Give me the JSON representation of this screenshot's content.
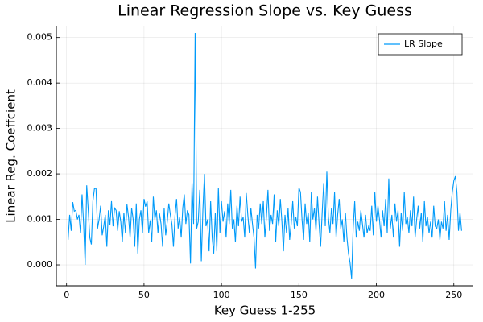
{
  "chart_data": {
    "type": "line",
    "title": "Linear Regression Slope vs. Key Guess",
    "xlabel": "Key Guess 1-255",
    "ylabel": "Linear Reg. Coeffcient",
    "x": [
      1,
      2,
      3,
      4,
      5,
      6,
      7,
      8,
      9,
      10,
      11,
      12,
      13,
      14,
      15,
      16,
      17,
      18,
      19,
      20,
      21,
      22,
      23,
      24,
      25,
      26,
      27,
      28,
      29,
      30,
      31,
      32,
      33,
      34,
      35,
      36,
      37,
      38,
      39,
      40,
      41,
      42,
      43,
      44,
      45,
      46,
      47,
      48,
      49,
      50,
      51,
      52,
      53,
      54,
      55,
      56,
      57,
      58,
      59,
      60,
      61,
      62,
      63,
      64,
      65,
      66,
      67,
      68,
      69,
      70,
      71,
      72,
      73,
      74,
      75,
      76,
      77,
      78,
      79,
      80,
      81,
      82,
      83,
      84,
      85,
      86,
      87,
      88,
      89,
      90,
      91,
      92,
      93,
      94,
      95,
      96,
      97,
      98,
      99,
      100,
      101,
      102,
      103,
      104,
      105,
      106,
      107,
      108,
      109,
      110,
      111,
      112,
      113,
      114,
      115,
      116,
      117,
      118,
      119,
      120,
      121,
      122,
      123,
      124,
      125,
      126,
      127,
      128,
      129,
      130,
      131,
      132,
      133,
      134,
      135,
      136,
      137,
      138,
      139,
      140,
      141,
      142,
      143,
      144,
      145,
      146,
      147,
      148,
      149,
      150,
      151,
      152,
      153,
      154,
      155,
      156,
      157,
      158,
      159,
      160,
      161,
      162,
      163,
      164,
      165,
      166,
      167,
      168,
      169,
      170,
      171,
      172,
      173,
      174,
      175,
      176,
      177,
      178,
      179,
      180,
      181,
      182,
      183,
      184,
      185,
      186,
      187,
      188,
      189,
      190,
      191,
      192,
      193,
      194,
      195,
      196,
      197,
      198,
      199,
      200,
      201,
      202,
      203,
      204,
      205,
      206,
      207,
      208,
      209,
      210,
      211,
      212,
      213,
      214,
      215,
      216,
      217,
      218,
      219,
      220,
      221,
      222,
      223,
      224,
      225,
      226,
      227,
      228,
      229,
      230,
      231,
      232,
      233,
      234,
      235,
      236,
      237,
      238,
      239,
      240,
      241,
      242,
      243,
      244,
      245,
      246,
      247,
      248,
      249,
      250,
      251,
      252,
      253,
      254,
      255
    ],
    "series": [
      {
        "name": "LR Slope",
        "color": "#009af9",
        "values": [
          0.00055,
          0.0011,
          0.00075,
          0.00138,
          0.00118,
          0.0012,
          0.001,
          0.0011,
          0.0007,
          0.00155,
          0.0009,
          0.0,
          0.00175,
          0.0012,
          0.0006,
          0.00045,
          0.0014,
          0.00168,
          0.00168,
          0.0008,
          0.001,
          0.0013,
          0.00065,
          0.00085,
          0.0011,
          0.0004,
          0.0012,
          0.00088,
          0.0014,
          0.00085,
          0.00125,
          0.0012,
          0.00075,
          0.00118,
          0.00095,
          0.0005,
          0.00115,
          0.0007,
          0.00133,
          0.00105,
          0.0006,
          0.00125,
          0.001,
          0.0004,
          0.00135,
          0.00025,
          0.001,
          0.0012,
          0.0007,
          0.00145,
          0.00128,
          0.0014,
          0.0007,
          0.00098,
          0.0005,
          0.0015,
          0.001,
          0.0012,
          0.0007,
          0.00113,
          0.0009,
          0.0004,
          0.00125,
          0.00065,
          0.00095,
          0.00135,
          0.0011,
          0.0009,
          0.0004,
          0.00108,
          0.00145,
          0.0008,
          0.00105,
          0.0006,
          0.00125,
          0.00155,
          0.0009,
          0.0012,
          0.0011,
          3e-05,
          0.0018,
          0.0009,
          0.0051,
          0.0008,
          0.00095,
          0.00165,
          8e-05,
          0.0012,
          0.002,
          0.00085,
          0.001,
          0.0003,
          0.0014,
          0.0006,
          0.00025,
          0.00115,
          0.0003,
          0.0017,
          0.0007,
          0.0014,
          0.00095,
          0.00118,
          0.0006,
          0.00135,
          0.0009,
          0.00165,
          0.0008,
          0.001,
          0.0005,
          0.0013,
          0.00085,
          0.0015,
          0.00095,
          0.00105,
          0.0006,
          0.00158,
          0.0011,
          0.0007,
          0.00125,
          0.0009,
          0.0006,
          -8e-05,
          0.0011,
          0.0008,
          0.00135,
          0.0009,
          0.0014,
          0.0006,
          0.00105,
          0.00165,
          0.00075,
          0.0011,
          0.0009,
          0.00155,
          0.0005,
          0.0012,
          0.00085,
          0.00145,
          0.00095,
          0.0003,
          0.0011,
          0.0007,
          0.00125,
          0.00055,
          0.0009,
          0.0014,
          0.0008,
          0.00105,
          0.00085,
          0.0017,
          0.0016,
          0.001,
          0.00055,
          0.00135,
          0.0009,
          0.00115,
          0.0005,
          0.0016,
          0.001,
          0.00125,
          0.00075,
          0.0015,
          0.0009,
          0.0004,
          0.00115,
          0.0018,
          0.00085,
          0.00205,
          0.00105,
          0.0007,
          0.00125,
          0.0009,
          0.0016,
          0.0006,
          0.0011,
          0.00145,
          0.0008,
          0.001,
          0.0005,
          0.00115,
          0.0006,
          0.00025,
          5e-05,
          -0.0003,
          0.0008,
          0.0014,
          0.0006,
          0.00095,
          0.00075,
          0.0012,
          0.0009,
          0.0006,
          0.0011,
          0.0007,
          0.00085,
          0.00075,
          0.0013,
          0.00065,
          0.0016,
          0.00095,
          0.0013,
          0.001,
          0.0006,
          0.0012,
          0.00085,
          0.00145,
          0.0007,
          0.0019,
          0.0008,
          0.0011,
          0.0006,
          0.00135,
          0.00095,
          0.0012,
          0.0004,
          0.00115,
          0.00075,
          0.0016,
          0.0009,
          0.00105,
          0.0007,
          0.0012,
          0.00085,
          0.0015,
          0.0006,
          0.001,
          0.0013,
          0.0008,
          0.00115,
          0.0005,
          0.0014,
          0.00085,
          0.00105,
          0.0007,
          0.00095,
          0.0006,
          0.0013,
          0.00085,
          0.0008,
          0.001,
          0.00055,
          0.00095,
          0.0008,
          0.0014,
          0.00075,
          0.0011,
          0.00055,
          0.0012,
          0.0016,
          0.00185,
          0.00195,
          0.0016,
          0.00075,
          0.00115,
          0.00075
        ]
      }
    ],
    "xlim": [
      -6.6,
      262.6
    ],
    "ylim": [
      -0.00046,
      0.00526
    ],
    "xticks": [
      0,
      50,
      100,
      150,
      200,
      250
    ],
    "yticks": [
      {
        "value": 0,
        "label": "0.000"
      },
      {
        "value": 0.001,
        "label": "0.001"
      },
      {
        "value": 0.002,
        "label": "0.002"
      },
      {
        "value": 0.003,
        "label": "0.003"
      },
      {
        "value": 0.004,
        "label": "0.004"
      },
      {
        "value": 0.005,
        "label": "0.005"
      }
    ],
    "grid": true,
    "legend": "top-right"
  }
}
